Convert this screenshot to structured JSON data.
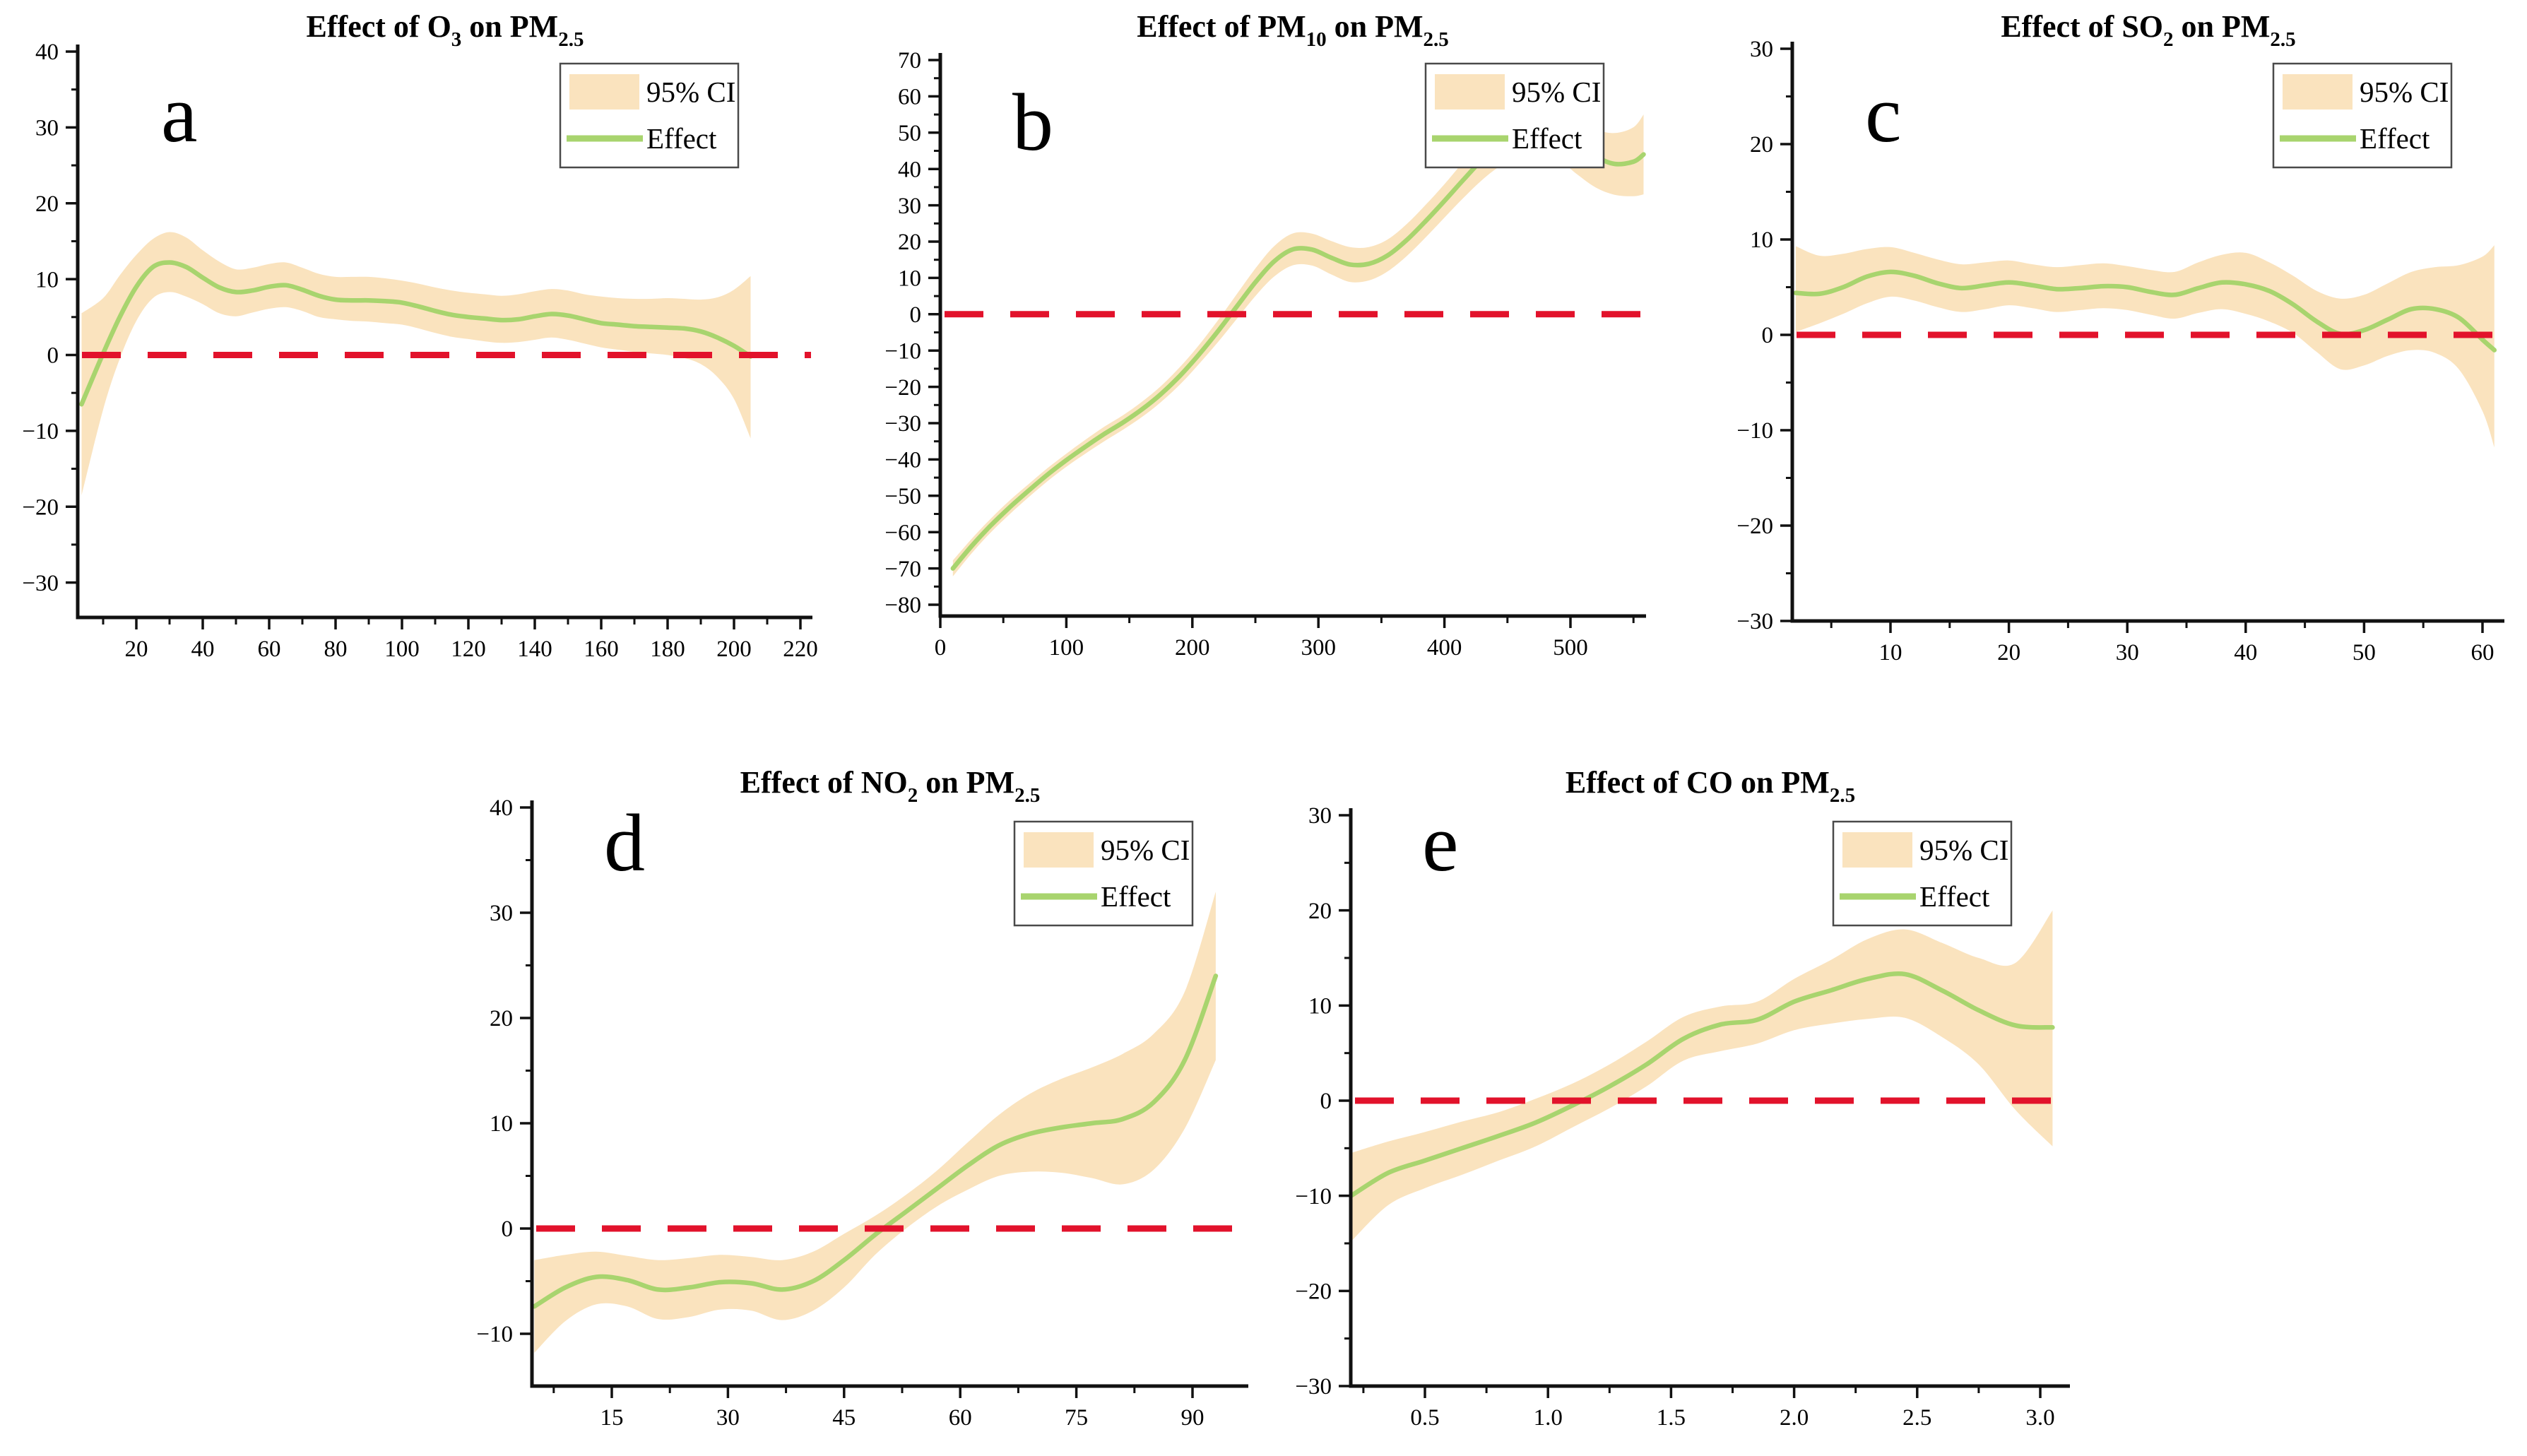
{
  "legend": {
    "ci_label": "95% CI",
    "effect_label": "Effect"
  },
  "colors": {
    "ci_band": "#FAE3BE",
    "effect_line": "#A8D46E",
    "zero_line": "#E2122B",
    "axis": "#111111",
    "legend_border": "#4a4a4a",
    "text": "#000000"
  },
  "chart_data": [
    {
      "type": "line",
      "panel_letter": "a",
      "title_parts": [
        {
          "t": "Effect of O",
          "sub": false
        },
        {
          "t": "3",
          "sub": true
        },
        {
          "t": " on PM",
          "sub": false
        },
        {
          "t": "2.5",
          "sub": true
        }
      ],
      "xlabel": "",
      "ylabel": "",
      "xlim": [
        2.4,
        225.5
      ],
      "ylim": [
        -34.5,
        40
      ],
      "grid": false,
      "legend_position": "upper right",
      "xticks": [
        20,
        40,
        60,
        80,
        100,
        120,
        140,
        160,
        180,
        200,
        220
      ],
      "xtick_labels": [
        "20",
        "40",
        "60",
        "80",
        "100",
        "120",
        "140",
        "160",
        "180",
        "200",
        "220"
      ],
      "xticks_minor": [
        10,
        30,
        50,
        70,
        90,
        110,
        130,
        150,
        170,
        190,
        210
      ],
      "yticks": [
        40,
        30,
        20,
        10,
        0,
        -10,
        -20,
        -30
      ],
      "ytick_labels": [
        "40",
        "30",
        "20",
        "10",
        "0",
        "−10",
        "−20",
        "−30"
      ],
      "yticks_minor": [
        35,
        25,
        15,
        5,
        -5,
        -15,
        -25
      ],
      "zero_line": true,
      "x": [
        3.5,
        10,
        15,
        20,
        25,
        30,
        35,
        40,
        45,
        50,
        55,
        60,
        65,
        70,
        75,
        80,
        85,
        90,
        95,
        100,
        105,
        110,
        115,
        120,
        125,
        130,
        135,
        140,
        145,
        150,
        155,
        160,
        165,
        170,
        175,
        180,
        185,
        190,
        195,
        200,
        205
      ],
      "effect": [
        -6.5,
        0.2,
        5,
        9,
        11.6,
        12.2,
        11.6,
        10.2,
        8.9,
        8.3,
        8.5,
        9.0,
        9.2,
        8.6,
        7.8,
        7.3,
        7.2,
        7.2,
        7.1,
        6.9,
        6.4,
        5.8,
        5.3,
        5.0,
        4.8,
        4.6,
        4.7,
        5.1,
        5.4,
        5.2,
        4.7,
        4.2,
        4.0,
        3.8,
        3.7,
        3.6,
        3.5,
        3.1,
        2.3,
        1.2,
        -0.2
      ],
      "ci_upper": [
        5.5,
        7.5,
        10.5,
        13.2,
        15.3,
        16.2,
        15.5,
        13.8,
        12.3,
        11.3,
        11.5,
        12.0,
        12.2,
        11.5,
        10.7,
        10.3,
        10.3,
        10.3,
        10.1,
        9.8,
        9.4,
        8.9,
        8.5,
        8.2,
        8.0,
        7.8,
        8.0,
        8.4,
        8.7,
        8.5,
        8.0,
        7.7,
        7.5,
        7.4,
        7.4,
        7.5,
        7.4,
        7.3,
        7.6,
        8.6,
        10.4
      ],
      "ci_lower": [
        -18.5,
        -7.2,
        -0.5,
        4.5,
        7.5,
        8.3,
        7.7,
        6.7,
        5.5,
        5.1,
        5.6,
        6.1,
        6.3,
        5.8,
        5.0,
        4.7,
        4.5,
        4.4,
        4.2,
        4.0,
        3.5,
        2.9,
        2.4,
        2.1,
        1.8,
        1.6,
        1.7,
        2.0,
        2.3,
        2.0,
        1.5,
        1.0,
        0.7,
        0.4,
        0.2,
        0.0,
        -0.4,
        -1.2,
        -2.9,
        -5.8,
        -11.0
      ]
    },
    {
      "type": "line",
      "panel_letter": "b",
      "title_parts": [
        {
          "t": "Effect of PM",
          "sub": false
        },
        {
          "t": "10",
          "sub": true
        },
        {
          "t": " on PM",
          "sub": false
        },
        {
          "t": "2.5",
          "sub": true
        }
      ],
      "xlabel": "",
      "ylabel": "",
      "xlim": [
        0,
        563
      ],
      "ylim": [
        -83,
        70
      ],
      "grid": false,
      "legend_position": "upper right",
      "xticks": [
        0,
        100,
        200,
        300,
        400,
        500
      ],
      "xtick_labels": [
        "0",
        "100",
        "200",
        "300",
        "400",
        "500"
      ],
      "xticks_minor": [
        50,
        150,
        250,
        350,
        450,
        550
      ],
      "yticks": [
        70,
        60,
        50,
        40,
        30,
        20,
        10,
        0,
        -10,
        -20,
        -30,
        -40,
        -50,
        -60,
        -70,
        -80
      ],
      "ytick_labels": [
        "70",
        "60",
        "50",
        "40",
        "30",
        "20",
        "10",
        "0",
        "−10",
        "−20",
        "−30",
        "−40",
        "−50",
        "−60",
        "−70",
        "−80"
      ],
      "yticks_minor": [
        65,
        55,
        45,
        35,
        25,
        15,
        5,
        -5,
        -15,
        -25,
        -35,
        -45,
        -55,
        -65,
        -75
      ],
      "zero_line": true,
      "x": [
        10,
        25,
        40,
        55,
        70,
        85,
        100,
        115,
        130,
        145,
        160,
        175,
        190,
        205,
        220,
        235,
        250,
        265,
        280,
        295,
        310,
        325,
        340,
        355,
        370,
        385,
        400,
        415,
        430,
        445,
        460,
        475,
        490,
        505,
        520,
        535,
        550,
        558
      ],
      "effect": [
        -70,
        -63.8,
        -58.2,
        -53.2,
        -48.6,
        -44.2,
        -40.2,
        -36.5,
        -33.0,
        -29.8,
        -26.2,
        -22.0,
        -17.0,
        -11.2,
        -4.8,
        2.0,
        8.8,
        14.6,
        17.9,
        17.8,
        15.6,
        13.7,
        13.9,
        16.2,
        20.4,
        25.6,
        31.2,
        37.0,
        42.6,
        47.2,
        49.9,
        50.7,
        49.6,
        46.6,
        43.4,
        41.4,
        42.0,
        44.0
      ],
      "ci_upper": [
        -67.8,
        -61.8,
        -56.3,
        -51.3,
        -46.8,
        -42.4,
        -38.4,
        -34.6,
        -31.0,
        -27.8,
        -24.1,
        -19.8,
        -14.6,
        -8.6,
        -1.8,
        5.4,
        12.6,
        18.8,
        22.3,
        22.2,
        20.2,
        18.5,
        18.5,
        20.6,
        24.8,
        30.1,
        35.8,
        42.0,
        48.2,
        53.4,
        56.5,
        57.5,
        56.5,
        53.6,
        50.9,
        49.9,
        51.5,
        55.0
      ],
      "ci_lower": [
        -72.2,
        -65.8,
        -60.1,
        -55.1,
        -50.4,
        -46.0,
        -42.0,
        -38.4,
        -35.0,
        -31.8,
        -28.3,
        -24.2,
        -19.4,
        -13.8,
        -7.8,
        -1.4,
        5.0,
        10.4,
        13.5,
        13.4,
        11.0,
        8.9,
        9.3,
        11.8,
        16.0,
        21.1,
        26.6,
        32.0,
        37.0,
        41.0,
        43.3,
        43.9,
        42.7,
        38.6,
        34.9,
        32.9,
        32.5,
        33.0
      ]
    },
    {
      "type": "line",
      "panel_letter": "c",
      "title_parts": [
        {
          "t": "Effect of SO",
          "sub": false
        },
        {
          "t": "2",
          "sub": true
        },
        {
          "t": " on PM",
          "sub": false
        },
        {
          "t": "2.5",
          "sub": true
        }
      ],
      "xlabel": "",
      "ylabel": "",
      "xlim": [
        1.7,
        62.1
      ],
      "ylim": [
        -30,
        30
      ],
      "grid": false,
      "legend_position": "upper right",
      "xticks": [
        10,
        20,
        30,
        40,
        50,
        60
      ],
      "xtick_labels": [
        "10",
        "20",
        "30",
        "40",
        "50",
        "60"
      ],
      "xticks_minor": [
        5,
        15,
        25,
        35,
        45,
        55
      ],
      "yticks": [
        30,
        20,
        10,
        0,
        -10,
        -20,
        -30
      ],
      "ytick_labels": [
        "30",
        "20",
        "10",
        "0",
        "−10",
        "−20",
        "−30"
      ],
      "yticks_minor": [
        25,
        15,
        5,
        -5,
        -15,
        -25
      ],
      "zero_line": true,
      "x": [
        2,
        4,
        6,
        8,
        10,
        12,
        14,
        16,
        18,
        20,
        22,
        24,
        26,
        28,
        30,
        32,
        34,
        36,
        38,
        40,
        42,
        44,
        46,
        48,
        50,
        52,
        54,
        56,
        58,
        60,
        61
      ],
      "effect": [
        4.4,
        4.3,
        5.0,
        6.1,
        6.6,
        6.2,
        5.4,
        4.9,
        5.2,
        5.5,
        5.2,
        4.8,
        4.9,
        5.1,
        5.0,
        4.5,
        4.2,
        4.9,
        5.5,
        5.3,
        4.6,
        3.2,
        1.4,
        0.1,
        0.5,
        1.6,
        2.7,
        2.7,
        1.8,
        -0.5,
        -1.6
      ],
      "ci_upper": [
        9.3,
        8.3,
        8.5,
        9.0,
        9.2,
        8.6,
        7.9,
        7.4,
        7.6,
        7.8,
        7.4,
        7.1,
        7.3,
        7.5,
        7.2,
        6.8,
        6.6,
        7.6,
        8.4,
        8.6,
        7.6,
        6.2,
        4.6,
        3.8,
        4.2,
        5.4,
        6.6,
        7.1,
        7.3,
        8.2,
        9.4
      ],
      "ci_lower": [
        0.3,
        1.2,
        2.2,
        3.3,
        4.0,
        3.6,
        2.9,
        2.4,
        2.7,
        3.1,
        2.8,
        2.4,
        2.6,
        2.8,
        2.6,
        2.1,
        1.7,
        2.3,
        2.7,
        2.2,
        1.4,
        0.2,
        -1.8,
        -3.6,
        -3.2,
        -2.2,
        -1.6,
        -1.9,
        -3.6,
        -8.0,
        -11.8
      ]
    },
    {
      "type": "line",
      "panel_letter": "d",
      "title_parts": [
        {
          "t": "Effect of NO",
          "sub": false
        },
        {
          "t": "2",
          "sub": true
        },
        {
          "t": " on PM",
          "sub": false
        },
        {
          "t": "2.5",
          "sub": true
        }
      ],
      "xlabel": "",
      "ylabel": "",
      "xlim": [
        4.7,
        97
      ],
      "ylim": [
        -15,
        40
      ],
      "grid": false,
      "legend_position": "upper right",
      "xticks": [
        15,
        30,
        45,
        60,
        75,
        90
      ],
      "xtick_labels": [
        "15",
        "30",
        "45",
        "60",
        "75",
        "90"
      ],
      "xticks_minor": [
        7.5,
        22.5,
        37.5,
        52.5,
        67.5,
        82.5
      ],
      "yticks": [
        40,
        30,
        20,
        10,
        0,
        -10
      ],
      "ytick_labels": [
        "40",
        "30",
        "20",
        "10",
        "0",
        "−10"
      ],
      "yticks_minor": [
        35,
        25,
        15,
        5,
        -5
      ],
      "zero_line": true,
      "x": [
        5,
        9,
        13,
        17,
        21,
        25,
        29,
        33,
        37,
        41,
        45,
        49,
        53,
        57,
        61,
        65,
        69,
        73,
        77,
        81,
        85,
        89,
        93
      ],
      "effect": [
        -7.4,
        -5.6,
        -4.6,
        -4.9,
        -5.8,
        -5.6,
        -5.1,
        -5.2,
        -5.8,
        -5.0,
        -3.0,
        -0.6,
        1.6,
        3.8,
        6.0,
        7.9,
        9.0,
        9.6,
        10.0,
        10.4,
        12.0,
        16.0,
        24.0
      ],
      "ci_upper": [
        -3.0,
        -2.5,
        -2.2,
        -2.6,
        -3.0,
        -2.8,
        -2.5,
        -2.7,
        -3.0,
        -2.2,
        -0.5,
        1.2,
        3.2,
        5.5,
        8.2,
        10.8,
        12.8,
        14.2,
        15.3,
        16.6,
        18.5,
        22.5,
        32.0
      ],
      "ci_lower": [
        -11.8,
        -8.8,
        -7.2,
        -7.4,
        -8.6,
        -8.4,
        -7.7,
        -7.8,
        -8.7,
        -7.8,
        -5.6,
        -2.5,
        0.0,
        2.1,
        3.7,
        5.0,
        5.4,
        5.3,
        4.8,
        4.2,
        5.6,
        9.5,
        16.0
      ]
    },
    {
      "type": "line",
      "panel_letter": "e",
      "title_parts": [
        {
          "t": "Effect of CO on PM",
          "sub": false
        },
        {
          "t": "2.5",
          "sub": true
        }
      ],
      "xlabel": "",
      "ylabel": "",
      "xlim": [
        0.2,
        3.12
      ],
      "ylim": [
        -30,
        30
      ],
      "grid": false,
      "legend_position": "upper right",
      "xticks": [
        0.5,
        1.0,
        1.5,
        2.0,
        2.5,
        3.0
      ],
      "xtick_labels": [
        "0.5",
        "1.0",
        "1.5",
        "2.0",
        "2.5",
        "3.0"
      ],
      "xticks_minor": [
        0.25,
        0.75,
        1.25,
        1.75,
        2.25,
        2.75
      ],
      "yticks": [
        30,
        20,
        10,
        0,
        -10,
        -20,
        -30
      ],
      "ytick_labels": [
        "30",
        "20",
        "10",
        "0",
        "−10",
        "−20",
        "−30"
      ],
      "yticks_minor": [
        25,
        15,
        5,
        -5,
        -15,
        -25
      ],
      "zero_line": true,
      "x": [
        0.2,
        0.35,
        0.5,
        0.65,
        0.8,
        0.95,
        1.1,
        1.25,
        1.4,
        1.55,
        1.7,
        1.85,
        2.0,
        2.15,
        2.3,
        2.45,
        2.6,
        2.75,
        2.9,
        3.05
      ],
      "effect": [
        -10.0,
        -7.6,
        -6.3,
        -5.0,
        -3.7,
        -2.3,
        -0.5,
        1.5,
        3.8,
        6.5,
        8.0,
        8.5,
        10.4,
        11.6,
        12.8,
        13.3,
        11.6,
        9.5,
        7.9,
        7.7
      ],
      "ci_upper": [
        -5.5,
        -4.3,
        -3.3,
        -2.2,
        -1.2,
        0.2,
        1.8,
        3.8,
        6.2,
        8.8,
        9.9,
        10.4,
        12.8,
        14.8,
        17.0,
        18.0,
        16.6,
        15.0,
        14.5,
        20.0
      ],
      "ci_lower": [
        -14.8,
        -11.0,
        -9.2,
        -7.8,
        -6.3,
        -4.8,
        -2.8,
        -0.8,
        1.5,
        4.2,
        5.2,
        6.0,
        7.4,
        8.1,
        8.6,
        8.7,
        6.7,
        3.8,
        -1.0,
        -4.8
      ]
    }
  ]
}
